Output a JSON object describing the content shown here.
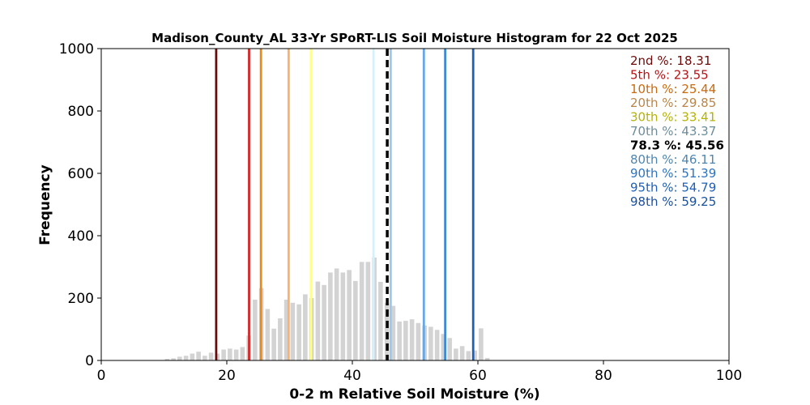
{
  "chart_data": {
    "type": "bar",
    "title": "Madison_County_AL 33-Yr SPoRT-LIS Soil Moisture Histogram for 22 Oct 2025",
    "xlabel": "0-2 m Relative Soil Moisture (%)",
    "ylabel": "Frequency",
    "xlim": [
      0,
      100
    ],
    "ylim": [
      0,
      1000
    ],
    "xticks": [
      0,
      20,
      40,
      60,
      80,
      100
    ],
    "yticks": [
      0,
      200,
      400,
      600,
      800,
      1000
    ],
    "grid": false,
    "bar_color": "#d3d3d3",
    "bin_width": 1,
    "bins": [
      {
        "x": 10.5,
        "y": 5
      },
      {
        "x": 11.5,
        "y": 7
      },
      {
        "x": 12.5,
        "y": 12
      },
      {
        "x": 13.5,
        "y": 15
      },
      {
        "x": 14.5,
        "y": 22
      },
      {
        "x": 15.5,
        "y": 28
      },
      {
        "x": 16.5,
        "y": 15
      },
      {
        "x": 17.5,
        "y": 25
      },
      {
        "x": 18.5,
        "y": 22
      },
      {
        "x": 19.5,
        "y": 35
      },
      {
        "x": 20.5,
        "y": 38
      },
      {
        "x": 21.5,
        "y": 35
      },
      {
        "x": 22.5,
        "y": 43
      },
      {
        "x": 23.5,
        "y": 80
      },
      {
        "x": 24.5,
        "y": 195
      },
      {
        "x": 25.5,
        "y": 232
      },
      {
        "x": 26.5,
        "y": 165
      },
      {
        "x": 27.5,
        "y": 102
      },
      {
        "x": 28.5,
        "y": 135
      },
      {
        "x": 29.5,
        "y": 195
      },
      {
        "x": 30.5,
        "y": 185
      },
      {
        "x": 31.5,
        "y": 180
      },
      {
        "x": 32.5,
        "y": 212
      },
      {
        "x": 33.5,
        "y": 200
      },
      {
        "x": 34.5,
        "y": 253
      },
      {
        "x": 35.5,
        "y": 242
      },
      {
        "x": 36.5,
        "y": 282
      },
      {
        "x": 37.5,
        "y": 295
      },
      {
        "x": 38.5,
        "y": 282
      },
      {
        "x": 39.5,
        "y": 290
      },
      {
        "x": 40.5,
        "y": 255
      },
      {
        "x": 41.5,
        "y": 316
      },
      {
        "x": 42.5,
        "y": 316
      },
      {
        "x": 43.5,
        "y": 330
      },
      {
        "x": 44.5,
        "y": 252
      },
      {
        "x": 45.5,
        "y": 185
      },
      {
        "x": 46.5,
        "y": 175
      },
      {
        "x": 47.5,
        "y": 125
      },
      {
        "x": 48.5,
        "y": 127
      },
      {
        "x": 49.5,
        "y": 132
      },
      {
        "x": 50.5,
        "y": 120
      },
      {
        "x": 51.5,
        "y": 112
      },
      {
        "x": 52.5,
        "y": 108
      },
      {
        "x": 53.5,
        "y": 98
      },
      {
        "x": 54.5,
        "y": 85
      },
      {
        "x": 55.5,
        "y": 72
      },
      {
        "x": 56.5,
        "y": 38
      },
      {
        "x": 57.5,
        "y": 46
      },
      {
        "x": 58.5,
        "y": 30
      },
      {
        "x": 59.5,
        "y": 32
      },
      {
        "x": 60.5,
        "y": 103
      },
      {
        "x": 61.5,
        "y": 8
      }
    ],
    "percentile_lines": [
      {
        "x": 18.31,
        "color": "#6b0a0a",
        "dashed": false
      },
      {
        "x": 23.55,
        "color": "#d62728",
        "dashed": false
      },
      {
        "x": 25.44,
        "color": "#e8891e",
        "dashed": false
      },
      {
        "x": 29.85,
        "color": "#f7b26b",
        "dashed": false
      },
      {
        "x": 33.41,
        "color": "#ffff80",
        "dashed": false
      },
      {
        "x": 43.37,
        "color": "#d6f0fb",
        "dashed": false
      },
      {
        "x": 45.56,
        "color": "#000000",
        "dashed": true
      },
      {
        "x": 46.11,
        "color": "#9ec9ea",
        "dashed": false
      },
      {
        "x": 51.39,
        "color": "#65a8e6",
        "dashed": false
      },
      {
        "x": 54.79,
        "color": "#3d8bd8",
        "dashed": false
      },
      {
        "x": 59.25,
        "color": "#1f5fb5",
        "dashed": false
      }
    ],
    "legend_position": "top-right",
    "legend": [
      {
        "pre": "2nd %: ",
        "value": "18.31",
        "color": "#6b0a0a",
        "bold": false
      },
      {
        "pre": "5th %: ",
        "value": "23.55",
        "color": "#b31217",
        "bold": false
      },
      {
        "pre": "10th %: ",
        "value": "25.44",
        "color": "#c76a10",
        "bold": false
      },
      {
        "pre": "20th %: ",
        "value": "29.85",
        "color": "#b8864a",
        "bold": false
      },
      {
        "pre": "30th %: ",
        "value": "33.41",
        "color": "#b3b30a",
        "bold": false
      },
      {
        "pre": "70th %: ",
        "value": "43.37",
        "color": "#6e8c99",
        "bold": false
      },
      {
        "pre": "78.3 %: ",
        "value": "45.56",
        "color": "#000000",
        "bold": true
      },
      {
        "pre": "80th %: ",
        "value": "46.11",
        "color": "#4f86b0",
        "bold": false
      },
      {
        "pre": "90th %: ",
        "value": "51.39",
        "color": "#2e73bf",
        "bold": false
      },
      {
        "pre": "95th %: ",
        "value": "54.79",
        "color": "#1f5fb5",
        "bold": false
      },
      {
        "pre": "98th %: ",
        "value": "59.25",
        "color": "#1a4f9c",
        "bold": false
      }
    ]
  }
}
